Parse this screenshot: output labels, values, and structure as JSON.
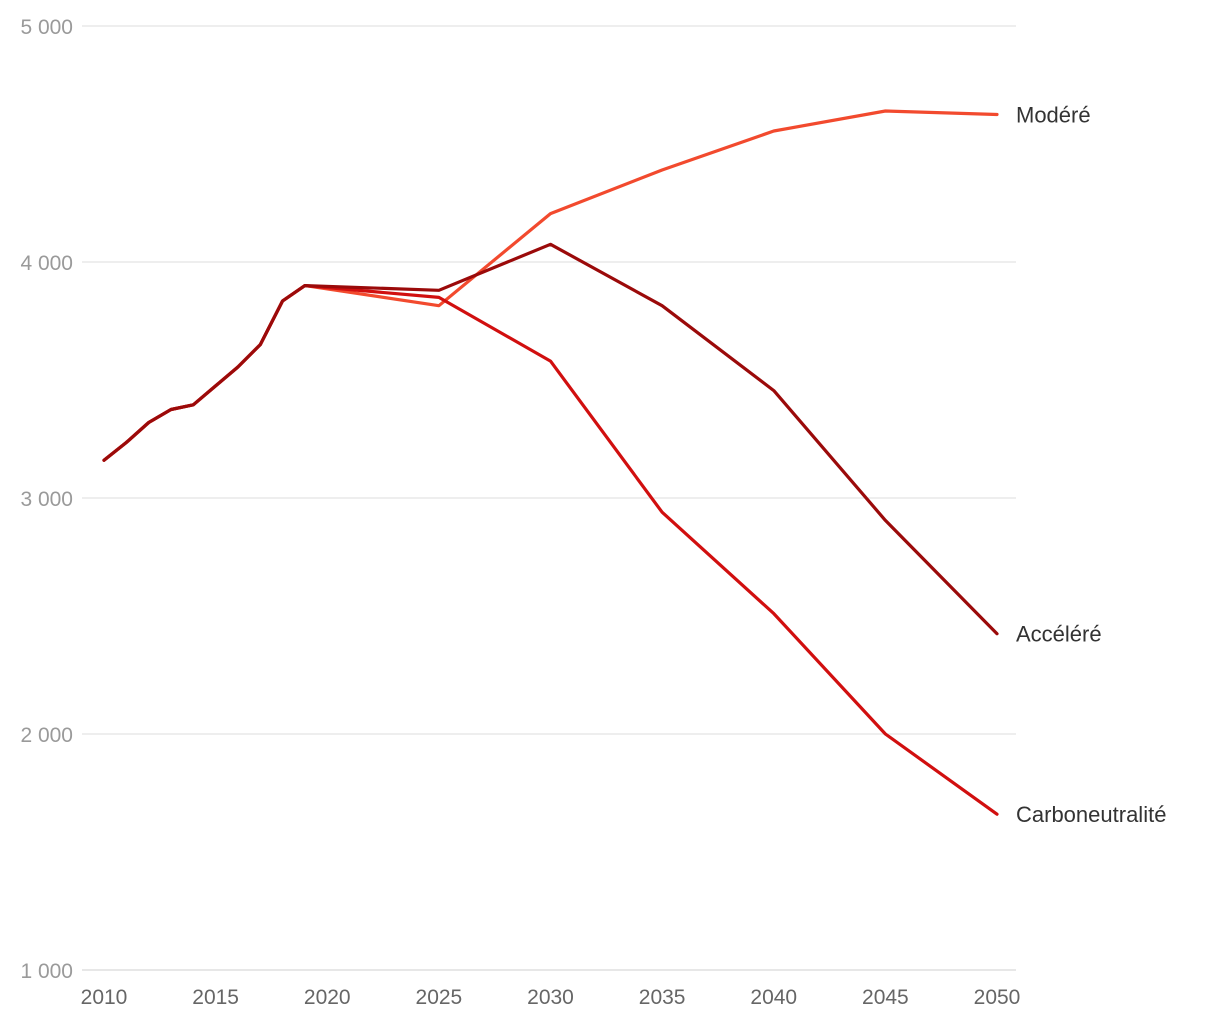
{
  "chart_data": {
    "type": "line",
    "title": "",
    "xlabel": "",
    "ylabel": "",
    "ylim": [
      1000,
      5000
    ],
    "xlim": [
      2010,
      2050
    ],
    "y_ticks": [
      {
        "value": 1000,
        "label": "1 000"
      },
      {
        "value": 2000,
        "label": "2 000"
      },
      {
        "value": 3000,
        "label": "3 000"
      },
      {
        "value": 4000,
        "label": "4 000"
      },
      {
        "value": 5000,
        "label": "5 000"
      }
    ],
    "x_ticks": [
      {
        "value": 2010,
        "label": "2010"
      },
      {
        "value": 2015,
        "label": "2015"
      },
      {
        "value": 2020,
        "label": "2020"
      },
      {
        "value": 2025,
        "label": "2025"
      },
      {
        "value": 2030,
        "label": "2030"
      },
      {
        "value": 2035,
        "label": "2035"
      },
      {
        "value": 2040,
        "label": "2040"
      },
      {
        "value": 2045,
        "label": "2045"
      },
      {
        "value": 2050,
        "label": "2050"
      }
    ],
    "grid": true,
    "legend": "direct labels at line ends (right)",
    "series": [
      {
        "name": "Modéré",
        "color": "#f24a2e",
        "x": [
          2010,
          2011,
          2012,
          2013,
          2014,
          2015,
          2016,
          2017,
          2018,
          2019,
          2025,
          2030,
          2035,
          2040,
          2045,
          2050
        ],
        "values": [
          3160,
          3235,
          3320,
          3375,
          3395,
          3475,
          3555,
          3650,
          3835,
          3900,
          3815,
          4205,
          4390,
          4555,
          4640,
          4625
        ]
      },
      {
        "name": "Carboneutralité",
        "color": "#d10f0f",
        "x": [
          2010,
          2011,
          2012,
          2013,
          2014,
          2015,
          2016,
          2017,
          2018,
          2019,
          2025,
          2030,
          2035,
          2040,
          2045,
          2050
        ],
        "values": [
          3160,
          3235,
          3320,
          3375,
          3395,
          3475,
          3555,
          3650,
          3835,
          3900,
          3850,
          3580,
          2940,
          2510,
          2000,
          1660
        ]
      },
      {
        "name": "Accéléré",
        "color": "#9b0a0a",
        "x": [
          2010,
          2011,
          2012,
          2013,
          2014,
          2015,
          2016,
          2017,
          2018,
          2019,
          2025,
          2030,
          2035,
          2040,
          2045,
          2050
        ],
        "values": [
          3160,
          3235,
          3320,
          3375,
          3395,
          3475,
          3555,
          3650,
          3835,
          3900,
          3880,
          4075,
          3815,
          3455,
          2905,
          2425
        ]
      }
    ]
  }
}
